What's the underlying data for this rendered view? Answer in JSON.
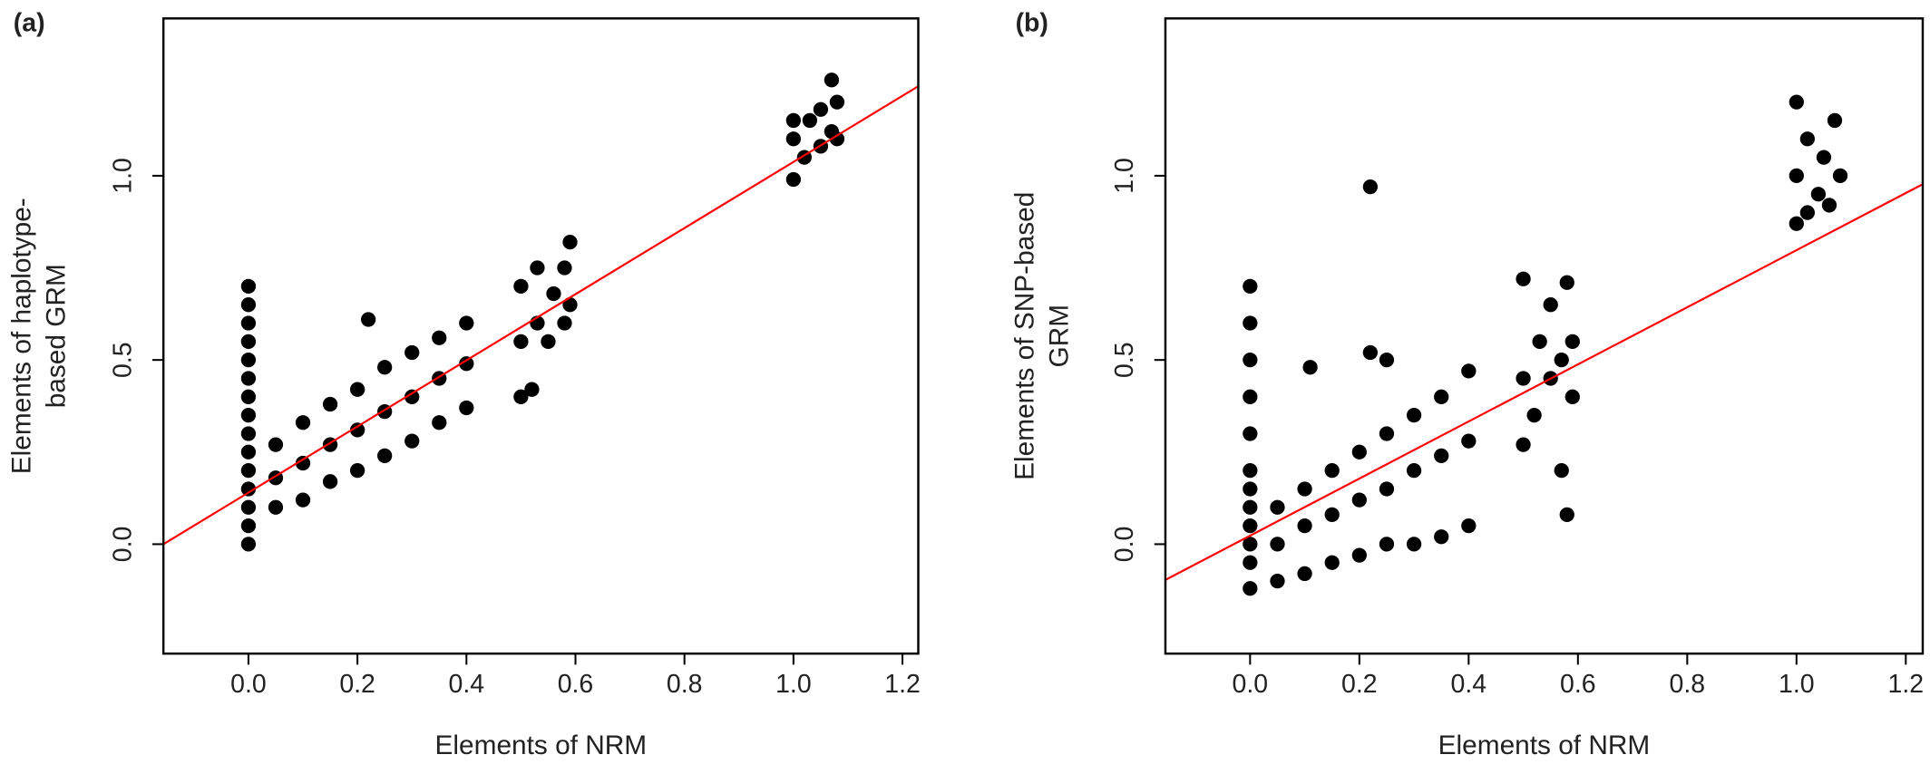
{
  "chart_data": [
    {
      "type": "scatter",
      "label": "(a)",
      "x_label": "Elements of NRM",
      "y_label": [
        "Elements of haplotype-",
        "based GRM"
      ],
      "color": "#000000",
      "x": [
        0,
        0,
        0,
        0,
        0,
        0,
        0,
        0,
        0,
        0,
        0,
        0,
        0,
        0,
        0,
        0.05,
        0.05,
        0.05,
        0.1,
        0.1,
        0.1,
        0.15,
        0.15,
        0.15,
        0.2,
        0.2,
        0.2,
        0.22,
        0.25,
        0.25,
        0.25,
        0.3,
        0.3,
        0.3,
        0.35,
        0.35,
        0.35,
        0.4,
        0.4,
        0.4,
        0.5,
        0.5,
        0.5,
        0.52,
        0.53,
        0.53,
        0.55,
        0.56,
        0.58,
        0.58,
        0.59,
        0.59,
        1.0,
        1.0,
        1.0,
        1.02,
        1.03,
        1.05,
        1.05,
        1.07,
        1.07,
        1.08,
        1.08
      ],
      "y": [
        0.0,
        0.05,
        0.1,
        0.15,
        0.2,
        0.25,
        0.3,
        0.35,
        0.4,
        0.45,
        0.5,
        0.55,
        0.6,
        0.65,
        0.7,
        0.1,
        0.18,
        0.27,
        0.12,
        0.22,
        0.33,
        0.17,
        0.27,
        0.38,
        0.2,
        0.31,
        0.42,
        0.61,
        0.24,
        0.36,
        0.48,
        0.28,
        0.4,
        0.52,
        0.33,
        0.45,
        0.56,
        0.37,
        0.49,
        0.6,
        0.4,
        0.55,
        0.7,
        0.42,
        0.6,
        0.75,
        0.55,
        0.68,
        0.6,
        0.75,
        0.82,
        0.65,
        0.99,
        1.1,
        1.15,
        1.05,
        1.15,
        1.08,
        1.18,
        1.12,
        1.26,
        1.1,
        1.2
      ],
      "line": {
        "color": "#ff0000",
        "x": [
          -0.156,
          1.229
        ],
        "y": [
          0.0,
          1.243
        ]
      },
      "xlim": [
        -0.156,
        1.229
      ],
      "ylim": [
        -0.297,
        1.427
      ],
      "xticks": [
        {
          "value": 0,
          "label": "0.0"
        },
        {
          "value": 0.2,
          "label": "0.2"
        },
        {
          "value": 0.4,
          "label": "0.4"
        },
        {
          "value": 0.6,
          "label": "0.6"
        },
        {
          "value": 0.8,
          "label": "0.8"
        },
        {
          "value": 1,
          "label": "1.0"
        },
        {
          "value": 1.2,
          "label": "1.2"
        }
      ],
      "yticks": [
        {
          "value": 0,
          "label": "0.0"
        },
        {
          "value": 0.5,
          "label": "0.5"
        },
        {
          "value": 1,
          "label": "1.0"
        }
      ]
    },
    {
      "type": "scatter",
      "label": "(b)",
      "x_label": "Elements of NRM",
      "y_label": [
        "Elements of SNP-based",
        "GRM"
      ],
      "color": "#000000",
      "x": [
        0,
        0,
        0,
        0,
        0,
        0,
        0,
        0,
        0,
        0,
        0,
        0,
        0.05,
        0.05,
        0.05,
        0.1,
        0.1,
        0.1,
        0.11,
        0.15,
        0.15,
        0.15,
        0.2,
        0.2,
        0.2,
        0.22,
        0.22,
        0.25,
        0.25,
        0.25,
        0.25,
        0.3,
        0.3,
        0.3,
        0.35,
        0.35,
        0.35,
        0.4,
        0.4,
        0.4,
        0.5,
        0.5,
        0.5,
        0.52,
        0.53,
        0.55,
        0.55,
        0.57,
        0.57,
        0.58,
        0.58,
        0.59,
        0.59,
        1.0,
        1.0,
        1.0,
        1.02,
        1.02,
        1.04,
        1.05,
        1.06,
        1.07,
        1.08
      ],
      "y": [
        -0.12,
        -0.05,
        0.0,
        0.05,
        0.1,
        0.15,
        0.2,
        0.3,
        0.4,
        0.5,
        0.6,
        0.7,
        -0.1,
        0.0,
        0.1,
        -0.08,
        0.05,
        0.15,
        0.48,
        -0.05,
        0.08,
        0.2,
        -0.03,
        0.12,
        0.25,
        0.97,
        0.52,
        0.0,
        0.15,
        0.3,
        0.5,
        0.0,
        0.2,
        0.35,
        0.02,
        0.24,
        0.4,
        0.05,
        0.28,
        0.47,
        0.27,
        0.45,
        0.72,
        0.35,
        0.55,
        0.45,
        0.65,
        0.2,
        0.5,
        0.08,
        0.71,
        0.4,
        0.55,
        0.87,
        1.0,
        1.2,
        0.9,
        1.1,
        0.95,
        1.05,
        0.92,
        1.15,
        1.0
      ],
      "line": {
        "color": "#ff0000",
        "x": [
          -0.155,
          1.231
        ],
        "y": [
          -0.097,
          0.977
        ]
      },
      "xlim": [
        -0.155,
        1.231
      ],
      "ylim": [
        -0.297,
        1.427
      ],
      "xticks": [
        {
          "value": 0,
          "label": "0.0"
        },
        {
          "value": 0.2,
          "label": "0.2"
        },
        {
          "value": 0.4,
          "label": "0.4"
        },
        {
          "value": 0.6,
          "label": "0.6"
        },
        {
          "value": 0.8,
          "label": "0.8"
        },
        {
          "value": 1,
          "label": "1.0"
        },
        {
          "value": 1.2,
          "label": "1.2"
        }
      ],
      "yticks": [
        {
          "value": 0,
          "label": "0.0"
        },
        {
          "value": 0.5,
          "label": "0.5"
        },
        {
          "value": 1,
          "label": "1.0"
        }
      ]
    }
  ]
}
